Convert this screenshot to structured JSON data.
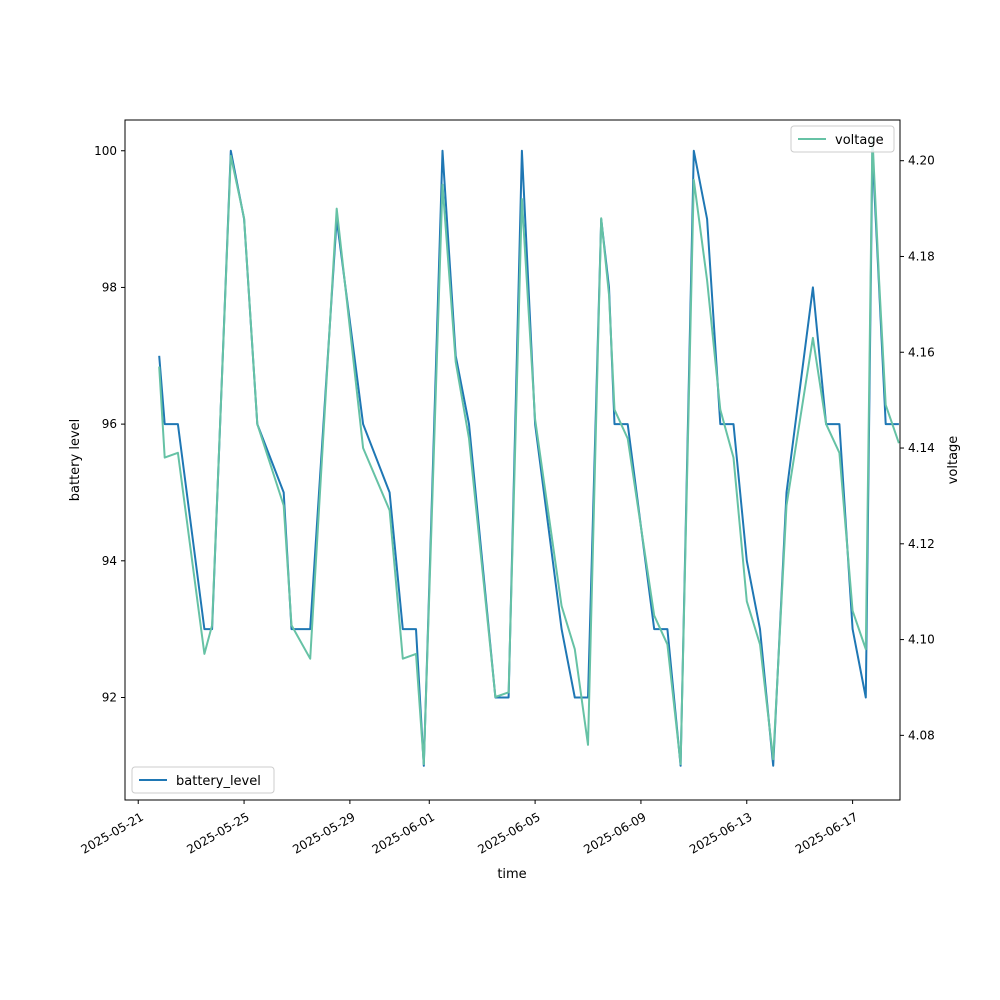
{
  "chart_data": {
    "type": "line",
    "xlabel": "time",
    "ylabel_left": "battery level",
    "ylabel_right": "voltage",
    "xlim": [
      "2025-05-20T12:00",
      "2025-06-18T19:00"
    ],
    "ylim_left": [
      90.5,
      100.45
    ],
    "ylim_right": [
      4.0665,
      4.2085
    ],
    "x_ticks": [
      "2025-05-21",
      "2025-05-25",
      "2025-05-29",
      "2025-06-01",
      "2025-06-05",
      "2025-06-09",
      "2025-06-13",
      "2025-06-17"
    ],
    "y_ticks_left": [
      92,
      94,
      96,
      98,
      100
    ],
    "y_ticks_right": [
      4.08,
      4.1,
      4.12,
      4.14,
      4.16,
      4.18,
      4.2
    ],
    "legend_left": {
      "label": "battery_level",
      "placement": "lower left"
    },
    "legend_right": {
      "label": "voltage",
      "placement": "upper right"
    },
    "series": [
      {
        "name": "battery_level",
        "axis": "left",
        "color": "#1f77b4",
        "points": [
          [
            "2025-05-21T19:00",
            97
          ],
          [
            "2025-05-22T00:00",
            96
          ],
          [
            "2025-05-22T12:00",
            96
          ],
          [
            "2025-05-23T12:00",
            93
          ],
          [
            "2025-05-23T19:00",
            93
          ],
          [
            "2025-05-24T12:00",
            100
          ],
          [
            "2025-05-25T00:00",
            99
          ],
          [
            "2025-05-25T12:00",
            96
          ],
          [
            "2025-05-26T12:00",
            95
          ],
          [
            "2025-05-26T19:00",
            93
          ],
          [
            "2025-05-27T12:00",
            93
          ],
          [
            "2025-05-28T12:00",
            99
          ],
          [
            "2025-05-29T12:00",
            96
          ],
          [
            "2025-05-30T12:00",
            95
          ],
          [
            "2025-05-31T00:00",
            93
          ],
          [
            "2025-05-31T12:00",
            93
          ],
          [
            "2025-05-31T19:00",
            91
          ],
          [
            "2025-06-01T12:00",
            100
          ],
          [
            "2025-06-02T00:00",
            97
          ],
          [
            "2025-06-02T12:00",
            96
          ],
          [
            "2025-06-03T12:00",
            92
          ],
          [
            "2025-06-04T00:00",
            92
          ],
          [
            "2025-06-04T12:00",
            100
          ],
          [
            "2025-06-05T00:00",
            96
          ],
          [
            "2025-06-06T00:00",
            93
          ],
          [
            "2025-06-06T12:00",
            92
          ],
          [
            "2025-06-07T00:00",
            92
          ],
          [
            "2025-06-07T12:00",
            99
          ],
          [
            "2025-06-07T19:00",
            98
          ],
          [
            "2025-06-08T00:00",
            96
          ],
          [
            "2025-06-08T12:00",
            96
          ],
          [
            "2025-06-09T12:00",
            93
          ],
          [
            "2025-06-10T00:00",
            93
          ],
          [
            "2025-06-10T12:00",
            91
          ],
          [
            "2025-06-11T00:00",
            100
          ],
          [
            "2025-06-11T12:00",
            99
          ],
          [
            "2025-06-12T00:00",
            96
          ],
          [
            "2025-06-12T12:00",
            96
          ],
          [
            "2025-06-13T00:00",
            94
          ],
          [
            "2025-06-13T12:00",
            93
          ],
          [
            "2025-06-14T00:00",
            91
          ],
          [
            "2025-06-14T12:00",
            95
          ],
          [
            "2025-06-15T12:00",
            98
          ],
          [
            "2025-06-16T00:00",
            96
          ],
          [
            "2025-06-16T12:00",
            96
          ],
          [
            "2025-06-17T00:00",
            93
          ],
          [
            "2025-06-17T12:00",
            92
          ],
          [
            "2025-06-17T18:00",
            100
          ],
          [
            "2025-06-18T00:00",
            98
          ],
          [
            "2025-06-18T06:00",
            96
          ],
          [
            "2025-06-18T18:00",
            96
          ]
        ]
      },
      {
        "name": "voltage",
        "axis": "right",
        "color": "#66c2a5",
        "points": [
          [
            "2025-05-21T19:00",
            4.157
          ],
          [
            "2025-05-22T00:00",
            4.138
          ],
          [
            "2025-05-22T12:00",
            4.139
          ],
          [
            "2025-05-23T12:00",
            4.097
          ],
          [
            "2025-05-23T19:00",
            4.103
          ],
          [
            "2025-05-24T12:00",
            4.201
          ],
          [
            "2025-05-25T00:00",
            4.188
          ],
          [
            "2025-05-25T12:00",
            4.145
          ],
          [
            "2025-05-26T12:00",
            4.128
          ],
          [
            "2025-05-26T19:00",
            4.103
          ],
          [
            "2025-05-27T12:00",
            4.096
          ],
          [
            "2025-05-28T12:00",
            4.19
          ],
          [
            "2025-05-29T12:00",
            4.14
          ],
          [
            "2025-05-30T12:00",
            4.127
          ],
          [
            "2025-05-31T00:00",
            4.096
          ],
          [
            "2025-05-31T12:00",
            4.097
          ],
          [
            "2025-05-31T19:00",
            4.074
          ],
          [
            "2025-06-01T12:00",
            4.195
          ],
          [
            "2025-06-02T00:00",
            4.158
          ],
          [
            "2025-06-02T12:00",
            4.142
          ],
          [
            "2025-06-03T12:00",
            4.088
          ],
          [
            "2025-06-04T00:00",
            4.089
          ],
          [
            "2025-06-04T12:00",
            4.192
          ],
          [
            "2025-06-05T00:00",
            4.146
          ],
          [
            "2025-06-06T00:00",
            4.107
          ],
          [
            "2025-06-06T12:00",
            4.098
          ],
          [
            "2025-06-07T00:00",
            4.078
          ],
          [
            "2025-06-07T12:00",
            4.188
          ],
          [
            "2025-06-07T19:00",
            4.172
          ],
          [
            "2025-06-08T00:00",
            4.148
          ],
          [
            "2025-06-08T12:00",
            4.142
          ],
          [
            "2025-06-09T12:00",
            4.105
          ],
          [
            "2025-06-10T00:00",
            4.099
          ],
          [
            "2025-06-10T12:00",
            4.074
          ],
          [
            "2025-06-11T00:00",
            4.196
          ],
          [
            "2025-06-11T12:00",
            4.175
          ],
          [
            "2025-06-12T00:00",
            4.148
          ],
          [
            "2025-06-12T12:00",
            4.138
          ],
          [
            "2025-06-13T00:00",
            4.108
          ],
          [
            "2025-06-13T12:00",
            4.099
          ],
          [
            "2025-06-14T00:00",
            4.075
          ],
          [
            "2025-06-14T12:00",
            4.128
          ],
          [
            "2025-06-15T12:00",
            4.163
          ],
          [
            "2025-06-16T00:00",
            4.145
          ],
          [
            "2025-06-16T12:00",
            4.139
          ],
          [
            "2025-06-17T00:00",
            4.106
          ],
          [
            "2025-06-17T12:00",
            4.098
          ],
          [
            "2025-06-17T18:00",
            4.205
          ],
          [
            "2025-06-18T00:00",
            4.175
          ],
          [
            "2025-06-18T06:00",
            4.149
          ],
          [
            "2025-06-18T18:00",
            4.141
          ]
        ]
      }
    ]
  }
}
